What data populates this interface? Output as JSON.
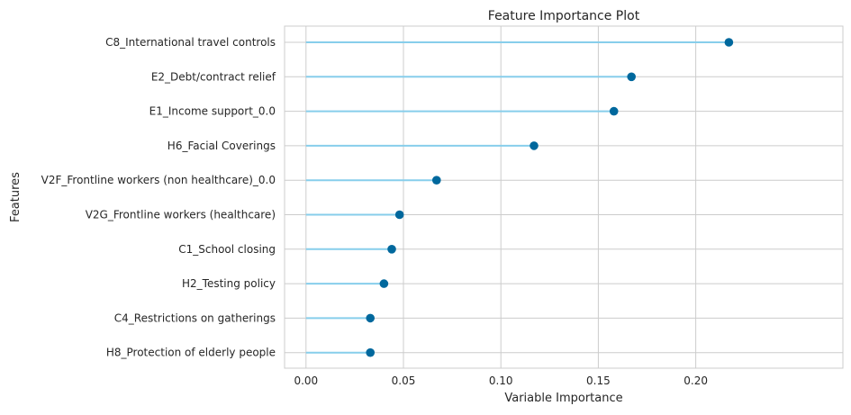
{
  "chart_data": {
    "type": "lollipop",
    "title": "Feature Importance Plot",
    "xlabel": "Variable Importance",
    "ylabel": "Features",
    "xlim": [
      -0.011,
      0.2755
    ],
    "xticks": [
      0.0,
      0.05,
      0.1,
      0.15,
      0.2
    ],
    "xtick_labels": [
      "0.00",
      "0.05",
      "0.10",
      "0.15",
      "0.20"
    ],
    "grid": true,
    "colors": {
      "stem": "#87ceeb",
      "marker": "#00689d",
      "grid": "#cccccc",
      "frame": "#cccccc"
    },
    "categories": [
      "C8_International travel controls",
      "E2_Debt/contract relief",
      "E1_Income support_0.0",
      "H6_Facial Coverings",
      "V2F_Frontline workers  (non healthcare)_0.0",
      "V2G_Frontline workers  (healthcare)",
      "C1_School closing",
      "H2_Testing policy",
      "C4_Restrictions on gatherings",
      "H8_Protection of elderly people"
    ],
    "values": [
      0.217,
      0.167,
      0.158,
      0.117,
      0.067,
      0.048,
      0.044,
      0.04,
      0.033,
      0.033
    ]
  }
}
